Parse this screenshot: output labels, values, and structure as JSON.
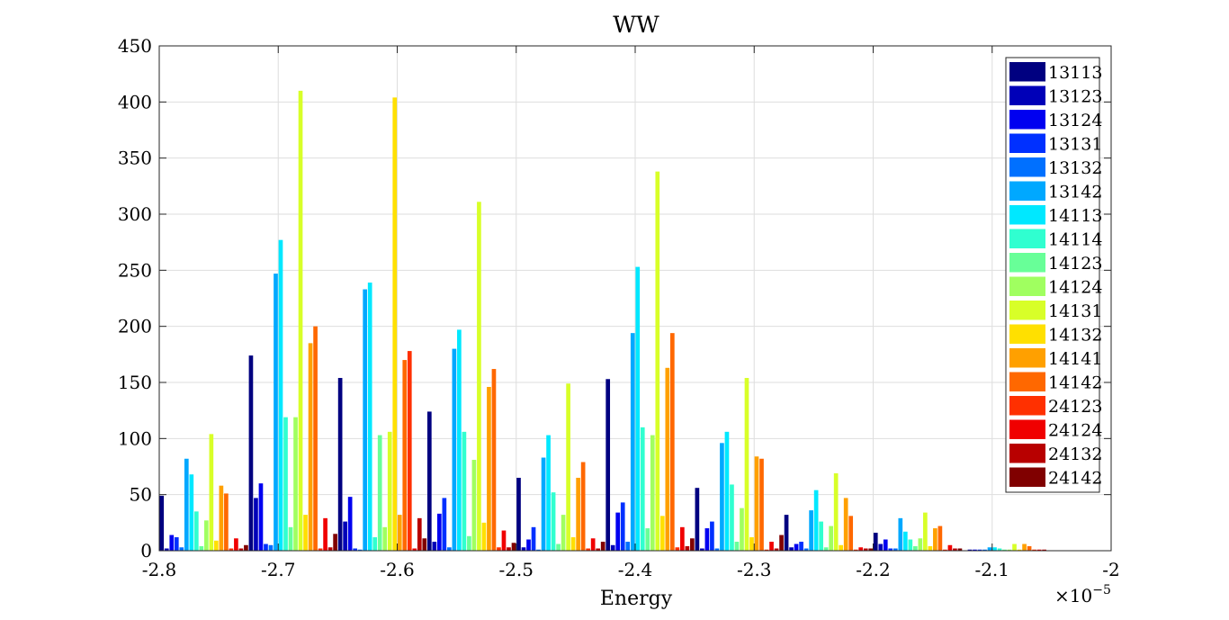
{
  "chart_data": {
    "type": "bar",
    "title": "WW",
    "xlabel": "Energy",
    "ylabel": "",
    "x_exponent": "×10",
    "x_exponent_power": "−5",
    "xlim": [
      -2.8,
      -2.0
    ],
    "ylim": [
      0,
      450
    ],
    "grid": true,
    "legend_position": "top-right",
    "xticks": [
      -2.8,
      -2.7,
      -2.6,
      -2.5,
      -2.4,
      -2.3,
      -2.2,
      -2.1,
      -2.0
    ],
    "xtick_labels": [
      "-2.8",
      "-2.7",
      "-2.6",
      "-2.5",
      "-2.4",
      "-2.3",
      "-2.2",
      "-2.1",
      "-2"
    ],
    "yticks": [
      0,
      50,
      100,
      150,
      200,
      250,
      300,
      350,
      400,
      450
    ],
    "ytick_labels": [
      "0",
      "50",
      "100",
      "150",
      "200",
      "250",
      "300",
      "350",
      "400",
      "450"
    ],
    "bin_centers": [
      -2.7625,
      -2.6875,
      -2.6125,
      -2.5375,
      -2.4625,
      -2.3875,
      -2.3125,
      -2.2375,
      -2.1625,
      -2.0875
    ],
    "series": [
      {
        "name": "13113",
        "color": "#000080",
        "values": [
          49,
          174,
          154,
          124,
          65,
          153,
          56,
          32,
          16,
          0
        ]
      },
      {
        "name": "13123",
        "color": "#0000b8",
        "values": [
          2,
          47,
          26,
          8,
          3,
          5,
          2,
          3,
          6,
          1
        ]
      },
      {
        "name": "13124",
        "color": "#0000f0",
        "values": [
          14,
          60,
          48,
          33,
          10,
          34,
          20,
          6,
          10,
          1
        ]
      },
      {
        "name": "13131",
        "color": "#0030ff",
        "values": [
          12,
          6,
          2,
          47,
          21,
          43,
          26,
          8,
          2,
          1
        ]
      },
      {
        "name": "13132",
        "color": "#0070ff",
        "values": [
          3,
          5,
          1,
          3,
          1,
          8,
          2,
          2,
          2,
          1
        ]
      },
      {
        "name": "13142",
        "color": "#00a8ff",
        "values": [
          82,
          247,
          233,
          180,
          83,
          194,
          96,
          36,
          29,
          3
        ]
      },
      {
        "name": "14113",
        "color": "#00e8ff",
        "values": [
          68,
          277,
          239,
          197,
          103,
          253,
          106,
          54,
          17,
          3
        ]
      },
      {
        "name": "14114",
        "color": "#30ffd0",
        "values": [
          35,
          119,
          12,
          106,
          52,
          110,
          59,
          26,
          10,
          2
        ]
      },
      {
        "name": "14123",
        "color": "#68ff98",
        "values": [
          4,
          21,
          103,
          13,
          6,
          20,
          8,
          3,
          4,
          1
        ]
      },
      {
        "name": "14124",
        "color": "#a0ff60",
        "values": [
          27,
          119,
          21,
          81,
          32,
          103,
          38,
          22,
          11,
          1
        ]
      },
      {
        "name": "14131",
        "color": "#d8ff28",
        "values": [
          104,
          410,
          106,
          311,
          149,
          338,
          154,
          69,
          34,
          6
        ]
      },
      {
        "name": "14132",
        "color": "#ffe000",
        "values": [
          9,
          32,
          404,
          25,
          12,
          31,
          12,
          5,
          4,
          1
        ]
      },
      {
        "name": "14141",
        "color": "#ffa000",
        "values": [
          58,
          185,
          32,
          146,
          65,
          163,
          84,
          47,
          20,
          6
        ]
      },
      {
        "name": "14142",
        "color": "#ff6800",
        "values": [
          51,
          200,
          170,
          162,
          79,
          194,
          82,
          31,
          22,
          4
        ]
      },
      {
        "name": "24123",
        "color": "#ff3000",
        "values": [
          2,
          2,
          178,
          3,
          2,
          3,
          1,
          1,
          1,
          1
        ]
      },
      {
        "name": "24124",
        "color": "#f00000",
        "values": [
          11,
          29,
          2,
          18,
          11,
          21,
          8,
          3,
          5,
          1
        ]
      },
      {
        "name": "24132",
        "color": "#b80000",
        "values": [
          2,
          3,
          29,
          3,
          2,
          4,
          2,
          2,
          2,
          1
        ]
      },
      {
        "name": "24142",
        "color": "#800000",
        "values": [
          5,
          15,
          11,
          7,
          8,
          11,
          14,
          2,
          2,
          0
        ]
      }
    ]
  }
}
